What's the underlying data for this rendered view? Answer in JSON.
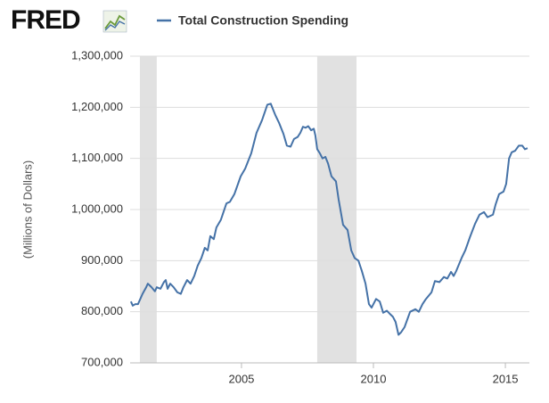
{
  "logo": "FRED",
  "chart_data": {
    "type": "line",
    "y_label": "(Millions of Dollars)",
    "x": [
      2000.81,
      2000.88,
      2000.98,
      2001.08,
      2001.25,
      2001.39,
      2001.45,
      2001.59,
      2001.72,
      2001.79,
      2001.93,
      2002.06,
      2002.13,
      2002.2,
      2002.3,
      2002.43,
      2002.57,
      2002.7,
      2002.8,
      2002.94,
      2003.07,
      2003.21,
      2003.34,
      2003.48,
      2003.61,
      2003.72,
      2003.82,
      2003.95,
      2004.05,
      2004.22,
      2004.43,
      2004.56,
      2004.73,
      2004.97,
      2005.14,
      2005.37,
      2005.57,
      2005.78,
      2005.98,
      2006.11,
      2006.28,
      2006.42,
      2006.59,
      2006.72,
      2006.86,
      2006.99,
      2007.13,
      2007.23,
      2007.33,
      2007.43,
      2007.53,
      2007.64,
      2007.74,
      2007.8,
      2007.87,
      2007.97,
      2008.07,
      2008.18,
      2008.28,
      2008.41,
      2008.58,
      2008.68,
      2008.85,
      2009.02,
      2009.16,
      2009.29,
      2009.43,
      2009.56,
      2009.7,
      2009.83,
      2009.93,
      2010.1,
      2010.24,
      2010.37,
      2010.51,
      2010.64,
      2010.74,
      2010.84,
      2010.95,
      2011.05,
      2011.18,
      2011.39,
      2011.59,
      2011.72,
      2011.86,
      2011.99,
      2012.2,
      2012.33,
      2012.5,
      2012.67,
      2012.8,
      2012.94,
      2013.04,
      2013.14,
      2013.34,
      2013.48,
      2013.65,
      2013.85,
      2014.02,
      2014.19,
      2014.32,
      2014.53,
      2014.63,
      2014.76,
      2014.93,
      2015.03,
      2015.14,
      2015.24,
      2015.37,
      2015.51,
      2015.64,
      2015.74,
      2015.84
    ],
    "series": [
      {
        "name": "Total Construction Spending",
        "color": "#4572a7",
        "values": [
          820000,
          812000,
          815000,
          815000,
          835000,
          848000,
          855000,
          848000,
          840000,
          848000,
          845000,
          858000,
          862000,
          845000,
          855000,
          848000,
          838000,
          835000,
          848000,
          862000,
          855000,
          870000,
          890000,
          905000,
          925000,
          920000,
          948000,
          942000,
          965000,
          980000,
          1012000,
          1015000,
          1030000,
          1065000,
          1080000,
          1110000,
          1150000,
          1175000,
          1205000,
          1207000,
          1185000,
          1170000,
          1148000,
          1125000,
          1123000,
          1138000,
          1142000,
          1150000,
          1162000,
          1160000,
          1163000,
          1155000,
          1158000,
          1145000,
          1118000,
          1110000,
          1100000,
          1103000,
          1090000,
          1065000,
          1055000,
          1020000,
          970000,
          960000,
          920000,
          905000,
          900000,
          880000,
          855000,
          815000,
          808000,
          825000,
          820000,
          798000,
          802000,
          795000,
          790000,
          780000,
          755000,
          760000,
          770000,
          800000,
          805000,
          800000,
          815000,
          825000,
          838000,
          860000,
          858000,
          868000,
          865000,
          878000,
          870000,
          880000,
          905000,
          920000,
          945000,
          972000,
          990000,
          995000,
          985000,
          990000,
          1010000,
          1030000,
          1035000,
          1050000,
          1100000,
          1112000,
          1115000,
          1125000,
          1125000,
          1118000,
          1120000
        ]
      }
    ],
    "recessions": [
      [
        2001.15,
        2001.79
      ],
      [
        2007.87,
        2009.36
      ]
    ],
    "xlim": [
      2000.78,
      2015.91
    ],
    "xticks": [
      2005,
      2010,
      2015
    ],
    "ylim": [
      700000,
      1300000
    ],
    "yticks": [
      {
        "value": 700000,
        "label": "700,000"
      },
      {
        "value": 800000,
        "label": "800,000"
      },
      {
        "value": 900000,
        "label": "900,000"
      },
      {
        "value": 1000000,
        "label": "1,000,000"
      },
      {
        "value": 1100000,
        "label": "1,100,000"
      },
      {
        "value": 1200000,
        "label": "1,200,000"
      },
      {
        "value": 1300000,
        "label": "1,300,000"
      }
    ],
    "grid": true
  }
}
